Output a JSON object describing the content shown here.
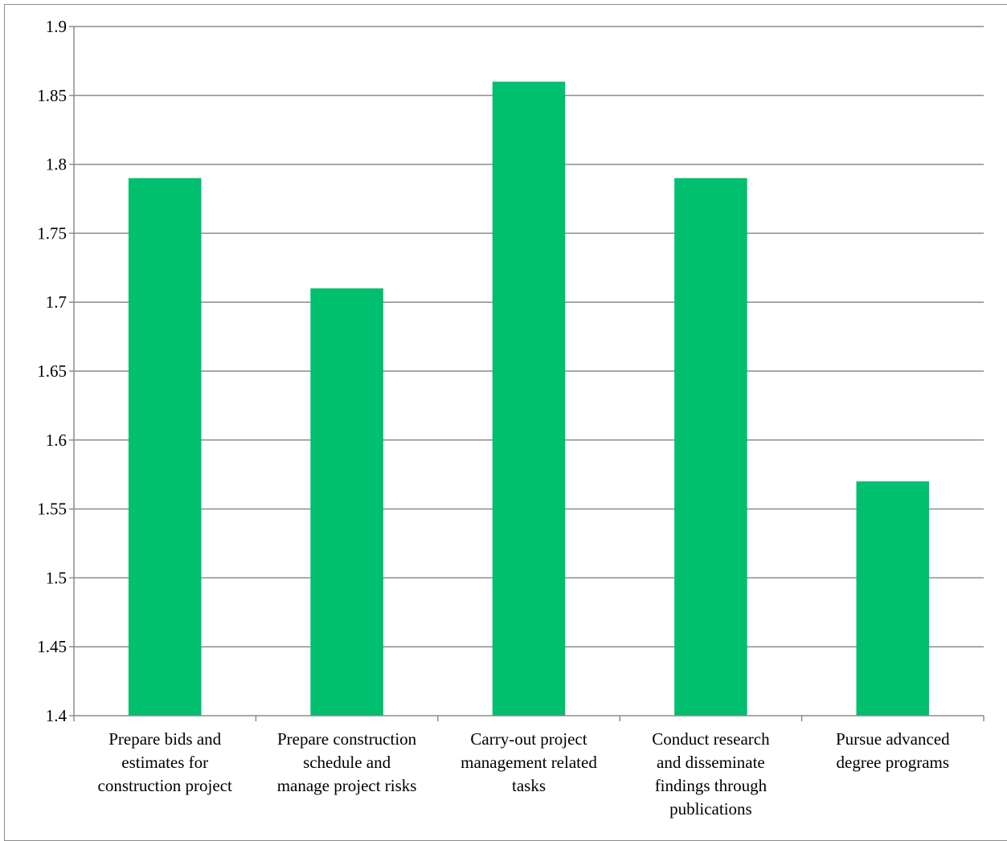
{
  "chart_data": {
    "type": "bar",
    "title": "",
    "xlabel": "",
    "ylabel": "",
    "categories": [
      "Prepare bids and estimates for construction project",
      "Prepare construction schedule and manage project risks",
      "Carry-out project management related tasks",
      "Conduct research and disseminate findings through publications",
      "Pursue advanced degree programs"
    ],
    "category_lines": [
      [
        "Prepare bids and",
        "estimates for",
        "construction project"
      ],
      [
        "Prepare construction",
        "schedule and",
        "manage project risks"
      ],
      [
        "Carry-out project",
        "management related",
        "tasks"
      ],
      [
        "Conduct research",
        "and disseminate",
        "findings through",
        "publications"
      ],
      [
        "Pursue advanced",
        "degree programs"
      ]
    ],
    "values": [
      1.79,
      1.71,
      1.86,
      1.79,
      1.57
    ],
    "ylim": [
      1.4,
      1.9
    ],
    "yticks": [
      "1.4",
      "1.45",
      "1.5",
      "1.55",
      "1.6",
      "1.65",
      "1.7",
      "1.75",
      "1.8",
      "1.85",
      "1.9"
    ],
    "grid": true,
    "legend": "none",
    "colors": {
      "bar": "#00BF6F",
      "grid": "#8c8c8c",
      "axis": "#8c8c8c",
      "text": "#000000"
    }
  }
}
